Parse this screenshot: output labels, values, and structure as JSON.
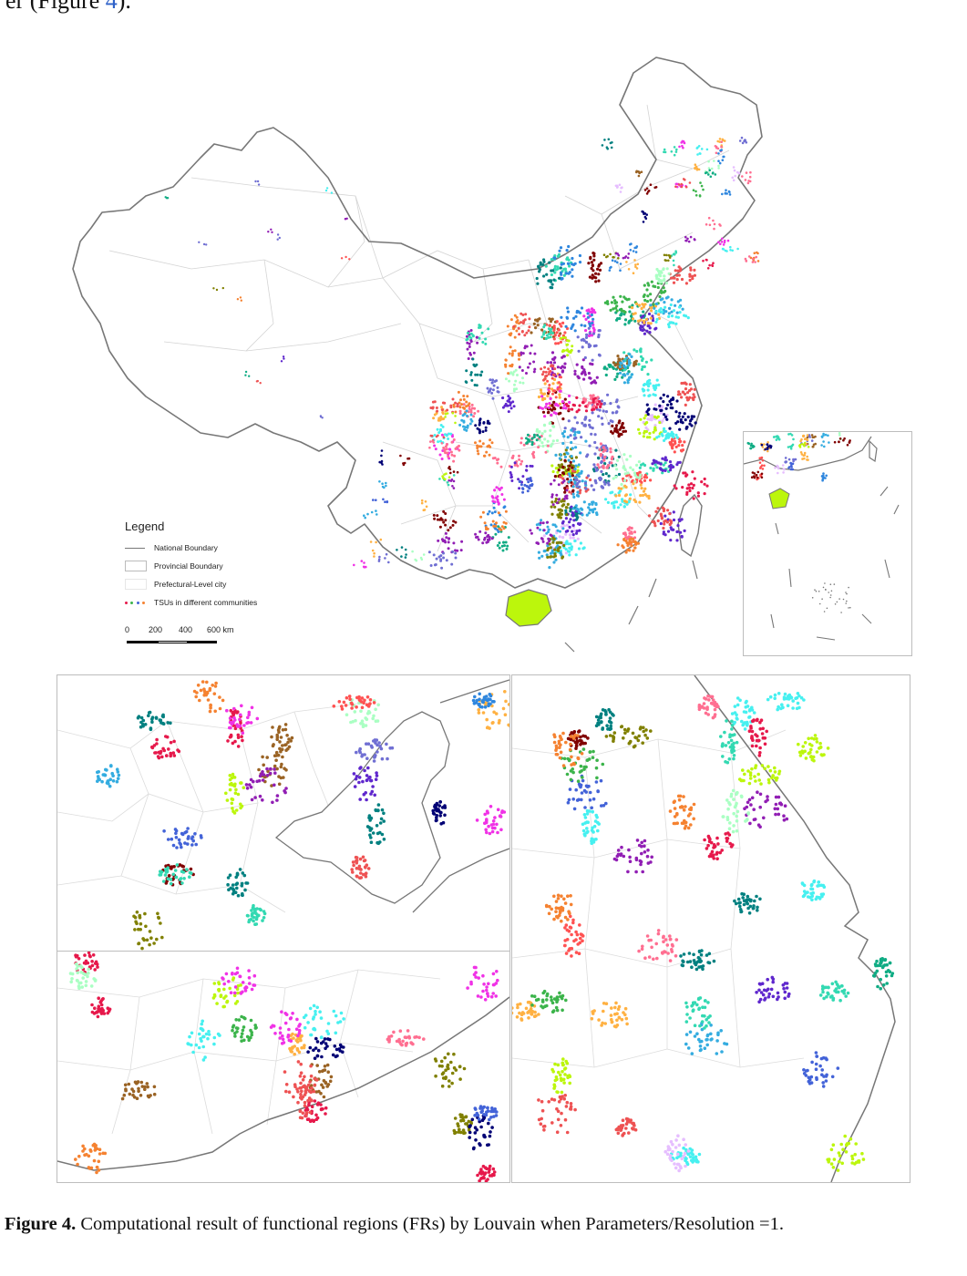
{
  "intro": {
    "text": "er (Figure ",
    "ref": "4",
    "suffix": ")."
  },
  "legend": {
    "title": "Legend",
    "items": [
      {
        "label": "National Boundary",
        "symbol": "line"
      },
      {
        "label": "Provincial Boundary",
        "symbol": "box"
      },
      {
        "label": "Prefectural-Level city",
        "symbol": "box-light"
      },
      {
        "label": "TSUs in different communities",
        "symbol": "dots"
      }
    ]
  },
  "scale": {
    "ticks": [
      "0",
      "200",
      "400",
      "600 km"
    ]
  },
  "caption": {
    "label": "Figure 4.",
    "text": " Computational result of functional regions (FRs) by Louvain when Parameters/Resolution =1."
  },
  "colors": {
    "national_boundary": "#777777",
    "provincial_boundary": "#cfcfcf",
    "community_palette": [
      "#e6194b",
      "#3cb44b",
      "#4363d8",
      "#f58231",
      "#911eb4",
      "#46f0f0",
      "#f032e6",
      "#bcf60c",
      "#008080",
      "#e6beff",
      "#9a6324",
      "#800000",
      "#aaffc3",
      "#808000",
      "#000075",
      "#ff6f91",
      "#2e86de",
      "#10ac84",
      "#ee5253",
      "#5f27cd",
      "#ffb142",
      "#33d9b2",
      "#706fd3",
      "#ff5252",
      "#34ace0"
    ]
  }
}
